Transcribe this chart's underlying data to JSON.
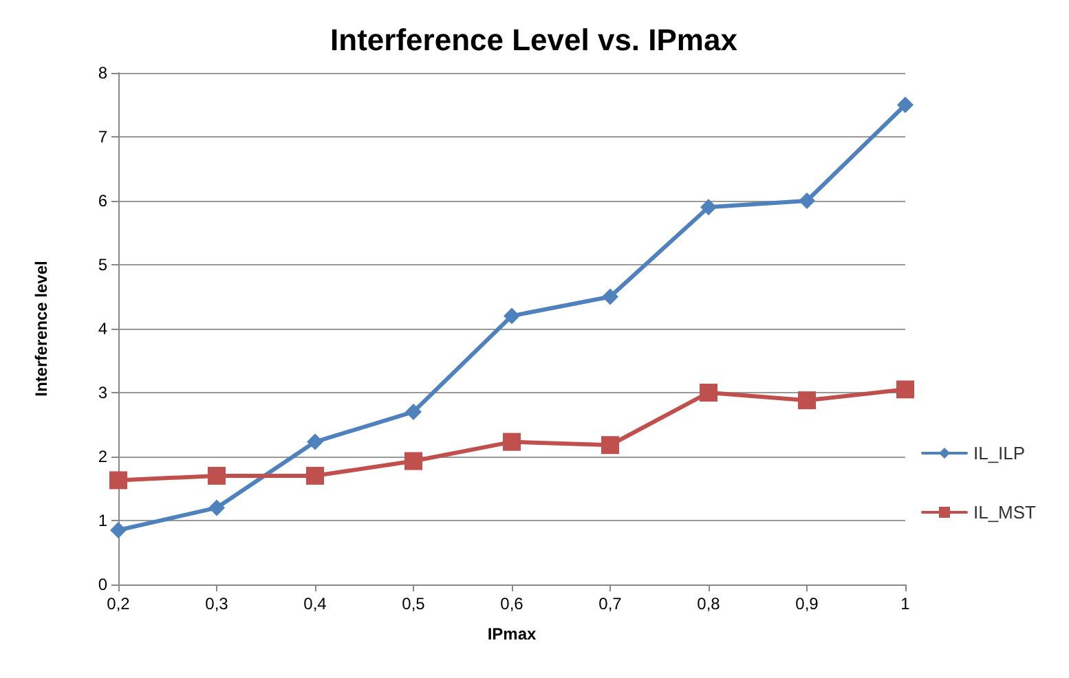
{
  "chart_data": {
    "type": "line",
    "title": "Interference Level vs. IPmax",
    "xlabel": "IPmax",
    "ylabel": "Interference level",
    "x": [
      0.2,
      0.3,
      0.4,
      0.5,
      0.6,
      0.7,
      0.8,
      0.9,
      1
    ],
    "series": [
      {
        "name": "IL_ILP",
        "color": "#4f81bd",
        "marker": "diamond",
        "values": [
          0.85,
          1.2,
          2.23,
          2.7,
          4.2,
          4.5,
          5.9,
          6.0,
          7.5
        ]
      },
      {
        "name": "IL_MST",
        "color": "#c0504d",
        "marker": "square",
        "values": [
          1.63,
          1.7,
          1.7,
          1.93,
          2.23,
          2.18,
          3.0,
          2.88,
          3.05
        ]
      }
    ],
    "xlim": [
      0.2,
      1
    ],
    "xticks": [
      {
        "value": 0.2,
        "label": "0,2"
      },
      {
        "value": 0.3,
        "label": "0,3"
      },
      {
        "value": 0.4,
        "label": "0,4"
      },
      {
        "value": 0.5,
        "label": "0,5"
      },
      {
        "value": 0.6,
        "label": "0,6"
      },
      {
        "value": 0.7,
        "label": "0,7"
      },
      {
        "value": 0.8,
        "label": "0,8"
      },
      {
        "value": 0.9,
        "label": "0,9"
      },
      1
    ],
    "ylim": [
      0,
      8
    ],
    "yticks": [
      0,
      1,
      2,
      3,
      4,
      5,
      6,
      7,
      8
    ],
    "grid": "y",
    "legend": "right",
    "line_style": "solid"
  }
}
